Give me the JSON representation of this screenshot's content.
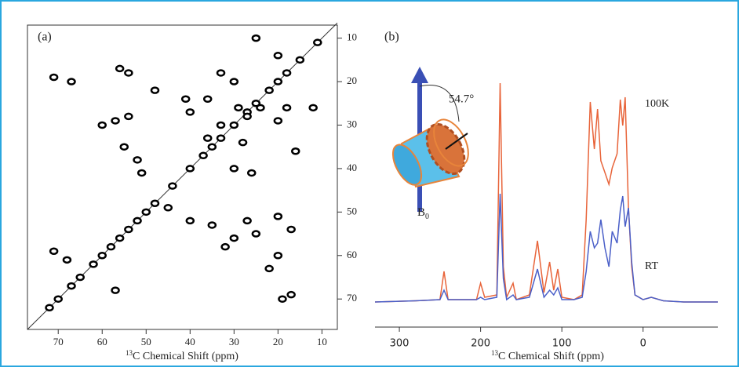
{
  "chart_data": [
    {
      "type": "scatter",
      "title": "(a)",
      "x_label": {
        "sup": "13",
        "text": "C Chemical Shift  (ppm)"
      },
      "xlim": [
        77,
        6.5
      ],
      "xticks": [
        70,
        60,
        50,
        40,
        30,
        20,
        10
      ],
      "ylim": [
        7,
        77
      ],
      "yticks": [
        10,
        20,
        30,
        40,
        50,
        60,
        70
      ],
      "color": "#000000",
      "x": [
        72,
        70,
        67,
        65,
        62,
        60,
        58,
        56,
        54,
        52,
        50,
        48,
        44,
        40,
        37,
        35,
        33,
        30,
        27,
        25,
        22,
        20,
        18,
        15,
        11,
        71,
        67,
        56,
        54,
        60,
        57,
        54,
        55,
        52,
        51,
        48,
        41,
        40,
        36,
        33,
        30,
        29,
        27,
        24,
        20,
        18,
        16,
        12,
        25,
        20,
        30,
        26,
        71,
        68,
        57,
        40,
        35,
        30,
        27,
        25,
        20,
        17,
        20,
        19,
        17,
        45,
        32,
        22,
        28,
        36,
        33
      ],
      "y": [
        72,
        70,
        67,
        65,
        62,
        60,
        58,
        56,
        54,
        52,
        50,
        48,
        44,
        40,
        37,
        35,
        33,
        30,
        27,
        25,
        22,
        20,
        18,
        15,
        11,
        19,
        20,
        17,
        18,
        30,
        29,
        28,
        35,
        38,
        41,
        22,
        24,
        27,
        24,
        18,
        20,
        26,
        28,
        26,
        29,
        26,
        36,
        26,
        10,
        14,
        40,
        41,
        59,
        61,
        68,
        52,
        53,
        56,
        52,
        55,
        51,
        54,
        60,
        70,
        69,
        49,
        58,
        63,
        34,
        33,
        30
      ]
    },
    {
      "type": "line",
      "title": "(b)",
      "x_label": {
        "sup": "13",
        "text": "C Chemical Shift  (ppm)"
      },
      "xlim": [
        330,
        -92
      ],
      "xticks": [
        300,
        200,
        100,
        0
      ],
      "ylim": [
        0,
        100
      ],
      "angle_label": "54.7°",
      "field_label": {
        "symbol": "B",
        "subscript": "0"
      },
      "x": [
        330,
        280,
        250,
        245,
        240,
        205,
        200,
        195,
        180,
        176,
        172,
        168,
        160,
        156,
        140,
        130,
        122,
        115,
        110,
        105,
        100,
        85,
        75,
        70,
        65,
        60,
        56,
        52,
        47,
        42,
        38,
        32,
        28,
        25,
        22,
        18,
        14,
        10,
        0,
        -10,
        -25,
        -50,
        -92
      ],
      "series": [
        {
          "name": "100K",
          "color": "#e8643a",
          "values": [
            5,
            5.5,
            6,
            18,
            6,
            6,
            13,
            7,
            8,
            98,
            20,
            7,
            13,
            6,
            8,
            31,
            9,
            22,
            10,
            19,
            7,
            6,
            8,
            40,
            90,
            70,
            87,
            65,
            60,
            55,
            62,
            68,
            91,
            80,
            92,
            45,
            20,
            8,
            6,
            7,
            5.5,
            5,
            5
          ]
        },
        {
          "name": "RT",
          "color": "#4a5fc8",
          "values": [
            5,
            5.5,
            6,
            10,
            6,
            6,
            7,
            6,
            7,
            51,
            15,
            6,
            8,
            6,
            7,
            19,
            7,
            10,
            8,
            11,
            6,
            6,
            7,
            18,
            35,
            28,
            30,
            40,
            28,
            20,
            35,
            30,
            44,
            50,
            37,
            45,
            22,
            8,
            6,
            7,
            5.5,
            5,
            5
          ]
        }
      ]
    }
  ]
}
